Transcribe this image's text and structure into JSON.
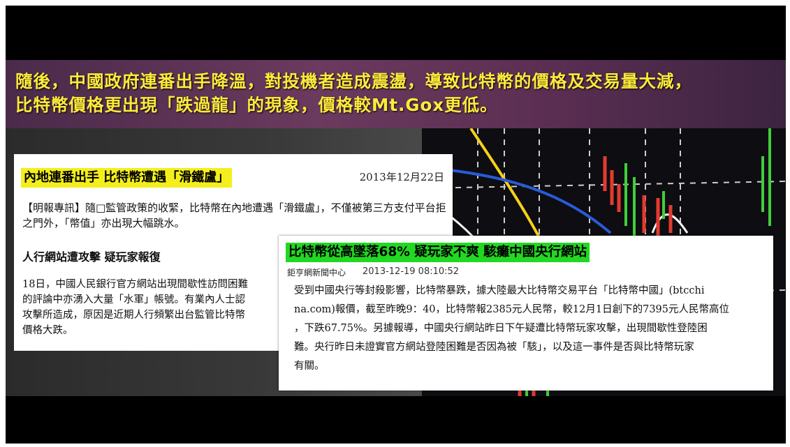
{
  "caption": {
    "line1": "隨後，中國政府連番出手降溫，對投機者造成震盪，導致比特幣的價格及交易量大減，",
    "line2": "比特幣價格更出現「跌過龍」的現象，價格較Mt.Gox更低。"
  },
  "article1": {
    "title": "內地連番出手 比特幣遭遇「滑鐵盧」",
    "date": "2013年12月22日",
    "body": "【明報專訊】隨□監管政策的收緊，比特幣在內地遭遇「滑鐵盧」，不僅被第三方支付平台拒之門外，「幣值」亦出現大幅跳水。",
    "subheading": "人行網站遭攻擊 疑玩家報復",
    "paragraph": "18日，中國人民銀行官方網站出現間歇性訪問困難\n的評論中亦湧入大量「水軍」帳號。有業內人士認\n攻擊所造成，原因是近期人行頻繁出台監管比特幣\n價格大跌。"
  },
  "article2": {
    "title": "比特幣從高墜落68% 疑玩家不爽 駭癱中國央行網站",
    "source": "鉅亨網新聞中心",
    "timestamp": "2013-12-19 08:10:52",
    "body": "受到中國央行等封殺影響，比特幣暴跌，據大陸最大比特幣交易平台「比特幣中國」(btcchi\nna.com)報價，截至昨晚9：40，比特幣報2385元人民幣，較12月1日創下的7395元人民幣高位\n，下跌67.75%。另據報導，中國央行網站昨日下午疑遭比特幣玩家攻擊，出現間歇性登陸困\n難。央行昨日未證實官方網站登陸困難是否因為被「駭」，以及這一事件是否與比特幣玩家\n有關。"
  },
  "colors": {
    "caption_text": "#ffeb3b",
    "title1_highlight": "#f4ef1c",
    "title2_highlight": "#22d822"
  }
}
